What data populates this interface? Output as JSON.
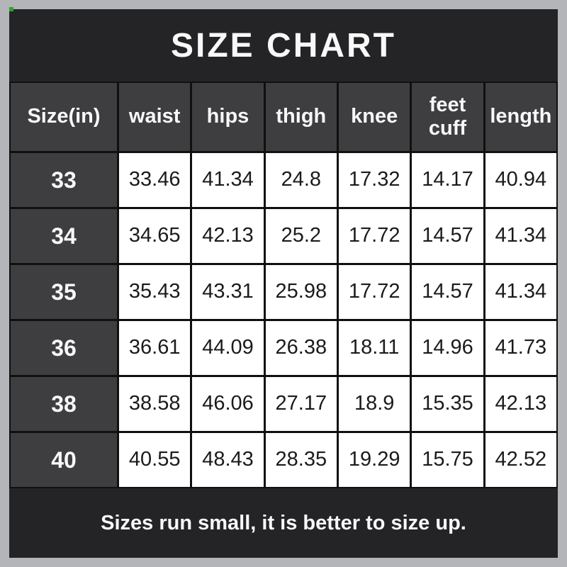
{
  "title": "SIZE CHART",
  "footer": {
    "note": "Sizes run small, it is better to size up."
  },
  "chart_data": {
    "type": "table",
    "title": "SIZE CHART",
    "unit": "in",
    "columns": [
      "Size(in)",
      "waist",
      "hips",
      "thigh",
      "knee",
      "feet cuff",
      "length"
    ],
    "rows": [
      [
        "33",
        "33.46",
        "41.34",
        "24.8",
        "17.32",
        "14.17",
        "40.94"
      ],
      [
        "34",
        "34.65",
        "42.13",
        "25.2",
        "17.72",
        "14.57",
        "41.34"
      ],
      [
        "35",
        "35.43",
        "43.31",
        "25.98",
        "17.72",
        "14.57",
        "41.34"
      ],
      [
        "36",
        "36.61",
        "44.09",
        "26.38",
        "18.11",
        "14.96",
        "41.73"
      ],
      [
        "38",
        "38.58",
        "46.06",
        "27.17",
        "18.9",
        "15.35",
        "42.13"
      ],
      [
        "40",
        "40.55",
        "48.43",
        "28.35",
        "19.29",
        "15.75",
        "42.52"
      ]
    ],
    "note": "Sizes run small, it is better to size up."
  },
  "colors": {
    "frame": "#b3b5b8",
    "gridline": "#101010",
    "panel": "#242426",
    "header_cell": "#3e3d40",
    "data_cell": "#ffffff",
    "text_light": "#f8f8f8",
    "text_dark": "#1b1b1b",
    "corner_dot": "#2ca52c"
  }
}
